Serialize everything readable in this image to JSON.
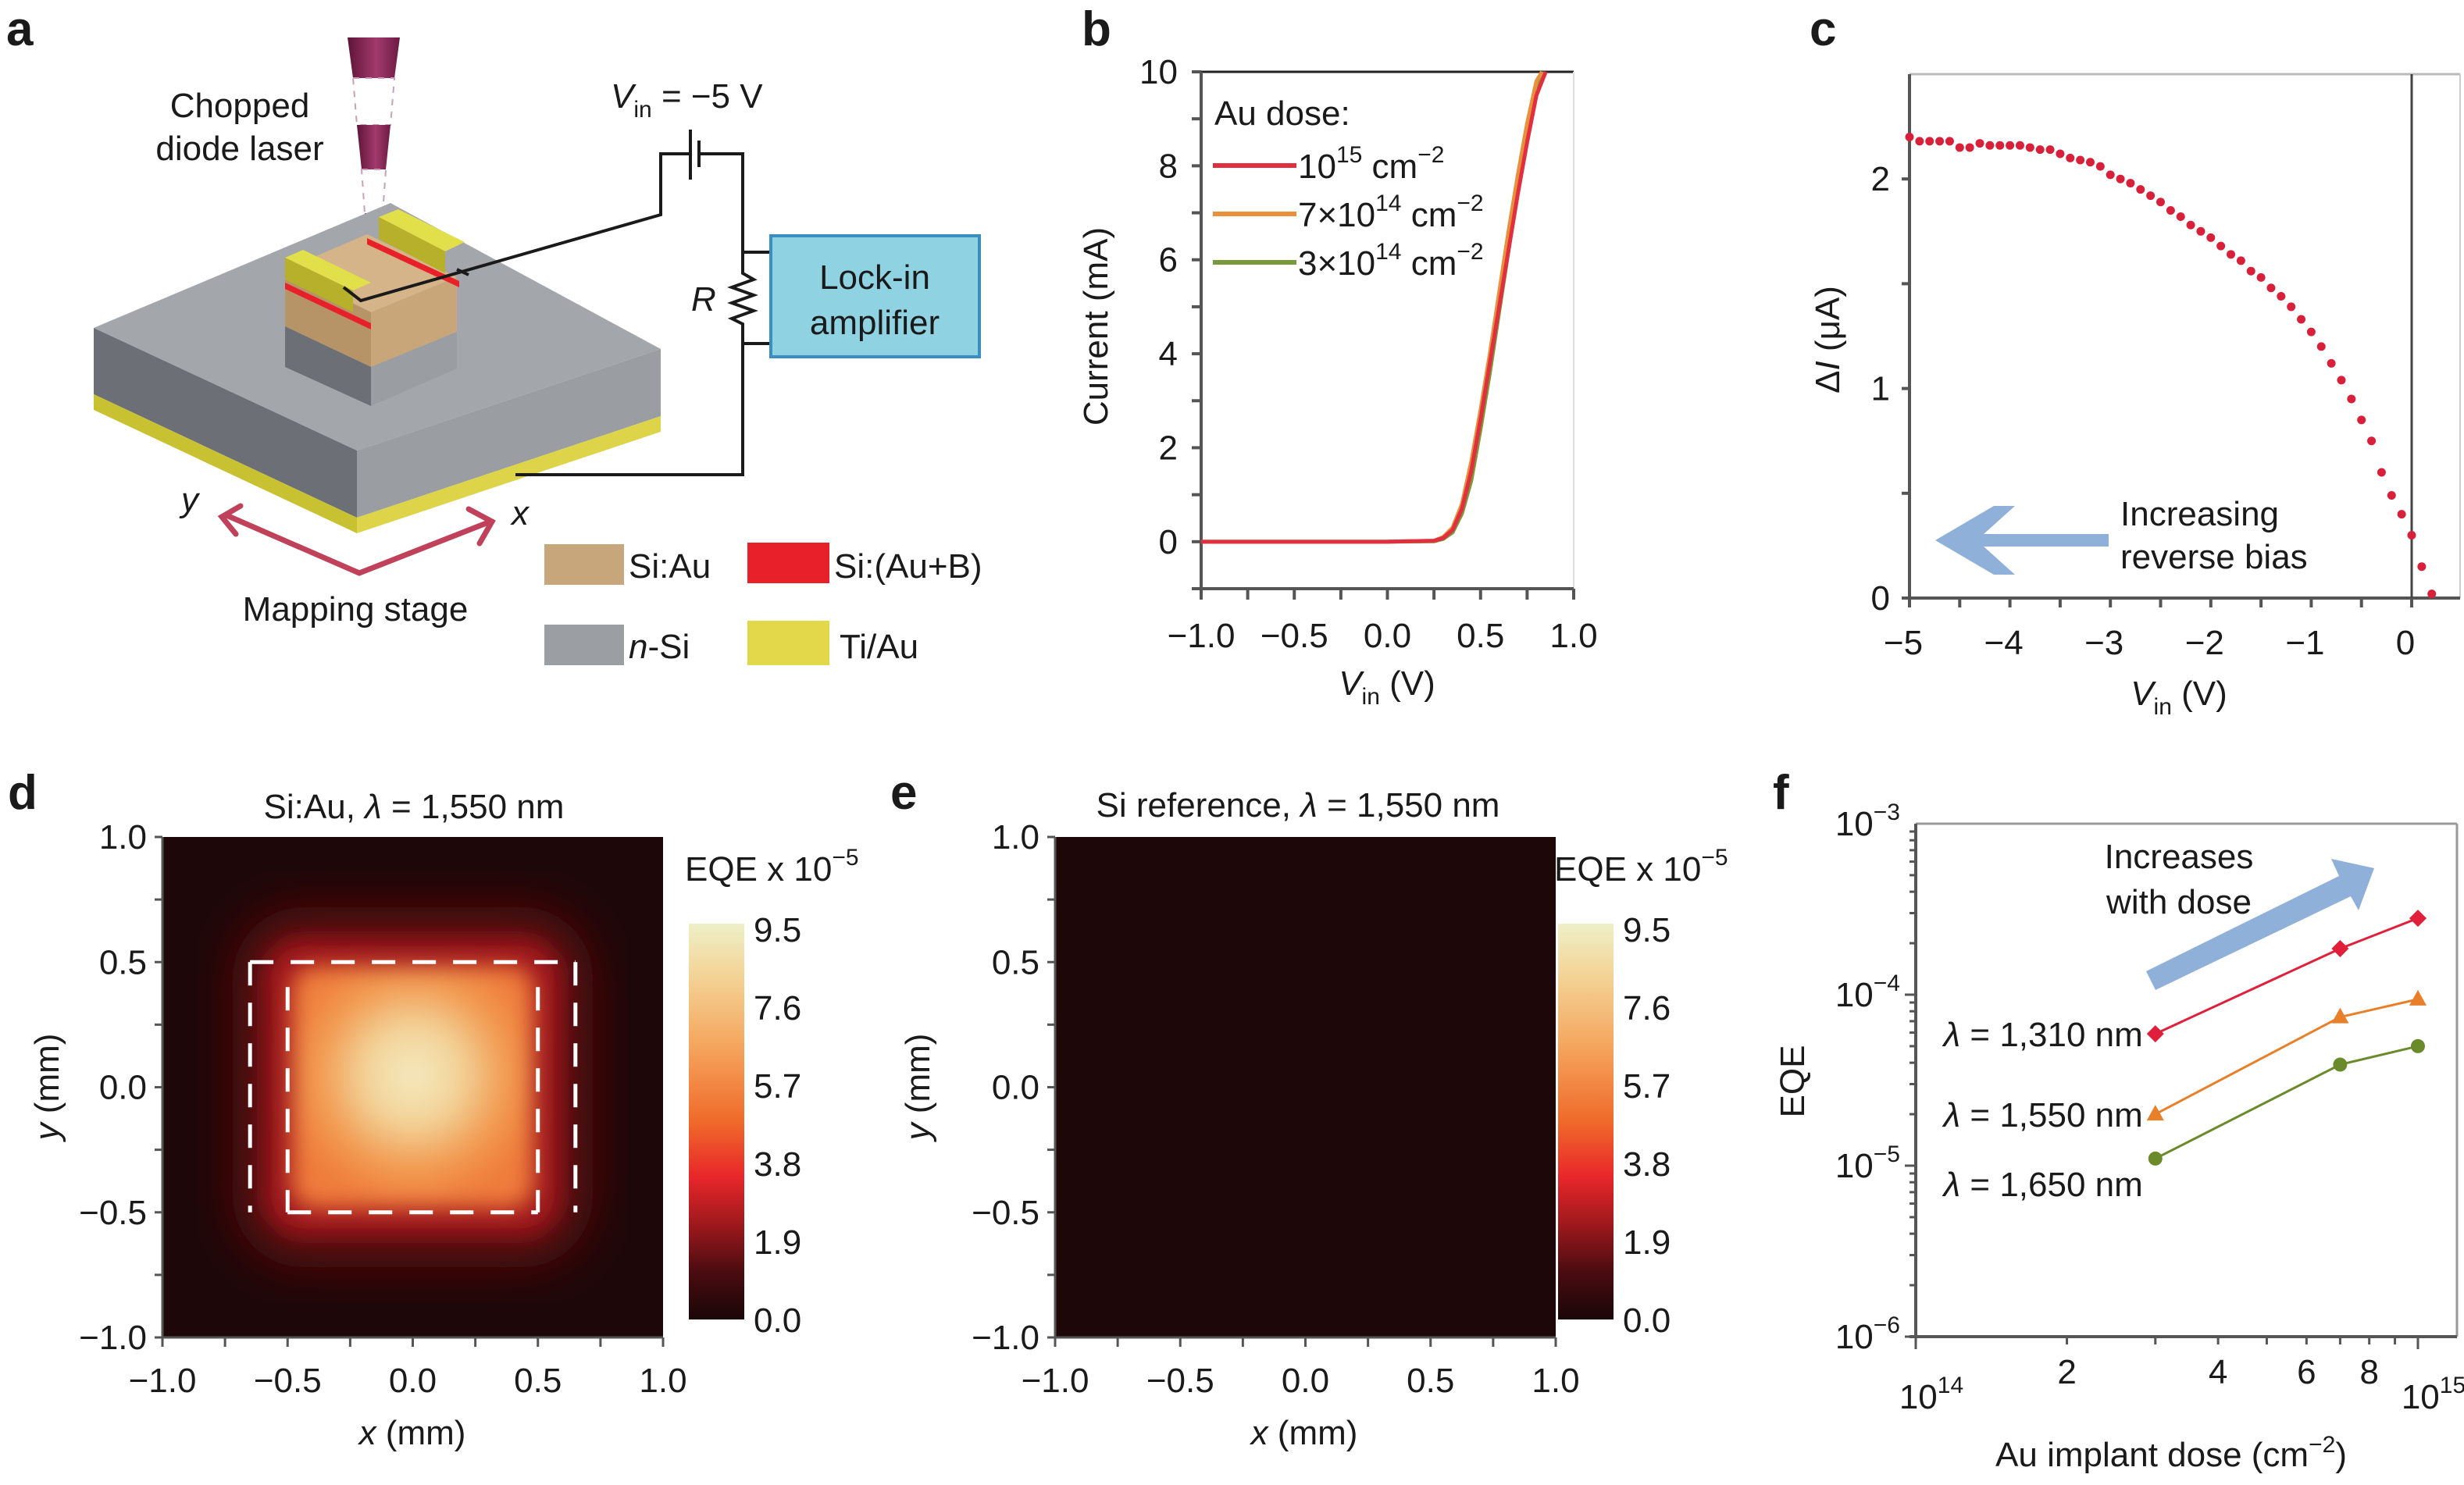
{
  "figure": {
    "panel_labels": [
      "a",
      "b",
      "c",
      "d",
      "e",
      "f"
    ]
  },
  "panel_a": {
    "laser_label_line1": "Chopped",
    "laser_label_line2": "diode laser",
    "voltage_label_main": "V",
    "voltage_label_sub": "in",
    "voltage_label_value": " = −5 V",
    "resistor_label": "R",
    "amplifier_line1": "Lock-in",
    "amplifier_line2": "amplifier",
    "axis_y": "y",
    "axis_x": "x",
    "stage_label": "Mapping stage",
    "legend": [
      {
        "label": "Si:Au",
        "color": "#c8a67c"
      },
      {
        "label": "Si:(Au+B)",
        "color": "#e8202a"
      },
      {
        "label": "-Si",
        "italic_prefix": "n",
        "color": "#9b9ea2"
      },
      {
        "label": "Ti/Au",
        "color": "#e2d84a"
      }
    ],
    "colors": {
      "laser": "#8a2356",
      "amplifier_fill": "#8fd3e3",
      "amplifier_border": "#3a8fc0",
      "stage_arrow": "#c0415a"
    }
  },
  "chart_data": [
    {
      "id": "b",
      "type": "line",
      "title": "",
      "xlabel": "V_in (V)",
      "xlabel_main": "V",
      "xlabel_sub": "in",
      "xlabel_unit": " (V)",
      "ylabel": "Current (mA)",
      "xlim": [
        -1.0,
        1.0
      ],
      "ylim": [
        -1,
        10
      ],
      "xticks": [
        -1.0,
        -0.5,
        0.0,
        0.5,
        1.0
      ],
      "xtick_labels": [
        "−1.0",
        "−0.5",
        "0.0",
        "0.5",
        "1.0"
      ],
      "yticks": [
        0,
        2,
        4,
        6,
        8,
        10
      ],
      "ytick_labels": [
        "0",
        "2",
        "4",
        "6",
        "8",
        "10"
      ],
      "legend_title": "Au dose:",
      "legend_position": "top-left",
      "series": [
        {
          "name": "10^15 cm^-2",
          "base": "10",
          "exp": "15",
          "unit": " cm",
          "unit_exp": "−2",
          "color": "#e03040",
          "x": [
            -1.0,
            0.0,
            0.25,
            0.3,
            0.35,
            0.4,
            0.45,
            0.5,
            0.55,
            0.6,
            0.65,
            0.7,
            0.75,
            0.8,
            0.85
          ],
          "y": [
            0,
            0,
            0.02,
            0.08,
            0.25,
            0.7,
            1.5,
            2.6,
            3.8,
            5.0,
            6.2,
            7.4,
            8.5,
            9.5,
            10
          ]
        },
        {
          "name": "7×10^14 cm^-2",
          "base": "7×10",
          "exp": "14",
          "unit": " cm",
          "unit_exp": "−2",
          "color": "#e8903a",
          "x": [
            -1.0,
            0.0,
            0.25,
            0.3,
            0.35,
            0.4,
            0.45,
            0.5,
            0.55,
            0.6,
            0.65,
            0.7,
            0.75,
            0.8,
            0.83
          ],
          "y": [
            0,
            0,
            0.02,
            0.1,
            0.3,
            0.8,
            1.7,
            2.8,
            4.0,
            5.3,
            6.6,
            7.8,
            8.9,
            9.8,
            10
          ]
        },
        {
          "name": "3×10^14 cm^-2",
          "base": "3×10",
          "exp": "14",
          "unit": " cm",
          "unit_exp": "−2",
          "color": "#7a9a3a",
          "x": [
            -1.0,
            0.0,
            0.25,
            0.3,
            0.35,
            0.4,
            0.45,
            0.5,
            0.55,
            0.6,
            0.65,
            0.7,
            0.75,
            0.8,
            0.84
          ],
          "y": [
            0,
            0,
            0.01,
            0.06,
            0.2,
            0.6,
            1.3,
            2.4,
            3.6,
            4.9,
            6.2,
            7.5,
            8.6,
            9.6,
            10
          ]
        }
      ]
    },
    {
      "id": "c",
      "type": "scatter",
      "title": "",
      "xlabel": "V_in (V)",
      "xlabel_main": "V",
      "xlabel_sub": "in",
      "xlabel_unit": " (V)",
      "ylabel": "ΔI (μA)",
      "ylabel_main": "Δ",
      "ylabel_italic": "I",
      "ylabel_unit": " (μA)",
      "xlim": [
        -5,
        0.5
      ],
      "ylim": [
        0,
        2.5
      ],
      "xticks": [
        -5,
        -4,
        -3,
        -2,
        -1,
        0
      ],
      "xtick_labels": [
        "−5",
        "−4",
        "−3",
        "−2",
        "−1",
        "0"
      ],
      "yticks": [
        0,
        1,
        2
      ],
      "ytick_labels": [
        "0",
        "1",
        "2"
      ],
      "annotation_line1": "Increasing",
      "annotation_line2": "reverse bias",
      "marker_color": "#d8203a",
      "arrow_color": "#8fb0d8",
      "x": [
        -5.0,
        -4.9,
        -4.8,
        -4.7,
        -4.6,
        -4.5,
        -4.4,
        -4.3,
        -4.2,
        -4.1,
        -4.0,
        -3.9,
        -3.8,
        -3.7,
        -3.6,
        -3.5,
        -3.4,
        -3.3,
        -3.2,
        -3.1,
        -3.0,
        -2.9,
        -2.8,
        -2.7,
        -2.6,
        -2.5,
        -2.4,
        -2.3,
        -2.2,
        -2.1,
        -2.0,
        -1.9,
        -1.8,
        -1.7,
        -1.6,
        -1.5,
        -1.4,
        -1.3,
        -1.2,
        -1.1,
        -1.0,
        -0.9,
        -0.8,
        -0.7,
        -0.6,
        -0.5,
        -0.4,
        -0.3,
        -0.2,
        -0.1,
        0.0,
        0.1,
        0.2
      ],
      "y": [
        2.2,
        2.18,
        2.18,
        2.18,
        2.18,
        2.15,
        2.15,
        2.17,
        2.16,
        2.16,
        2.16,
        2.16,
        2.15,
        2.14,
        2.14,
        2.12,
        2.1,
        2.09,
        2.08,
        2.06,
        2.02,
        2.0,
        1.98,
        1.95,
        1.92,
        1.89,
        1.85,
        1.82,
        1.78,
        1.75,
        1.72,
        1.68,
        1.64,
        1.61,
        1.56,
        1.53,
        1.48,
        1.44,
        1.39,
        1.33,
        1.27,
        1.2,
        1.12,
        1.04,
        0.95,
        0.85,
        0.75,
        0.6,
        0.49,
        0.4,
        0.3,
        0.15,
        0.02
      ]
    },
    {
      "id": "d",
      "type": "heatmap",
      "title_prefix": "Si:Au, ",
      "title_lambda": "λ",
      "title_suffix": " = 1,550 nm",
      "xlabel": "x (mm)",
      "ylabel": "y (mm)",
      "xlim": [
        -1.0,
        1.0
      ],
      "ylim": [
        -1.0,
        1.0
      ],
      "xticks": [
        -1.0,
        -0.5,
        0.0,
        0.5,
        1.0
      ],
      "xtick_labels": [
        "−1.0",
        "−0.5",
        "0.0",
        "0.5",
        "1.0"
      ],
      "yticks": [
        -1.0,
        -0.5,
        0.0,
        0.5,
        1.0
      ],
      "ytick_labels": [
        "−1.0",
        "−0.5",
        "0.0",
        "0.5",
        "1.0"
      ],
      "colorbar_label_main": "EQE x 10",
      "colorbar_label_exp": "−5",
      "colorbar_ticks": [
        0.0,
        1.9,
        3.8,
        5.7,
        7.6,
        9.5
      ],
      "colorbar_tick_labels": [
        "0.0",
        "1.9",
        "3.8",
        "5.7",
        "7.6",
        "9.5"
      ],
      "clim": [
        0.0,
        9.5
      ],
      "active_region": {
        "x": [
          -0.5,
          0.5
        ],
        "y": [
          -0.5,
          0.5
        ],
        "peak": 9.3,
        "edge": 4.5
      },
      "dashed_outline": {
        "x": [
          -0.65,
          0.65
        ],
        "y": [
          -0.5,
          0.5
        ]
      },
      "background": 0.1
    },
    {
      "id": "e",
      "type": "heatmap",
      "title_prefix": "Si reference, ",
      "title_lambda": "λ",
      "title_suffix": " = 1,550 nm",
      "xlabel": "x (mm)",
      "ylabel": "y (mm)",
      "xlim": [
        -1.0,
        1.0
      ],
      "ylim": [
        -1.0,
        1.0
      ],
      "xticks": [
        -1.0,
        -0.5,
        0.0,
        0.5,
        1.0
      ],
      "xtick_labels": [
        "−1.0",
        "−0.5",
        "0.0",
        "0.5",
        "1.0"
      ],
      "yticks": [
        -1.0,
        -0.5,
        0.0,
        0.5,
        1.0
      ],
      "ytick_labels": [
        "−1.0",
        "−0.5",
        "0.0",
        "0.5",
        "1.0"
      ],
      "colorbar_label_main": "EQE x 10",
      "colorbar_label_exp": "−5",
      "colorbar_ticks": [
        0.0,
        1.9,
        3.8,
        5.7,
        7.6,
        9.5
      ],
      "colorbar_tick_labels": [
        "0.0",
        "1.9",
        "3.8",
        "5.7",
        "7.6",
        "9.5"
      ],
      "clim": [
        0.0,
        9.5
      ],
      "background": 0.1
    },
    {
      "id": "f",
      "type": "line",
      "xscale": "log",
      "yscale": "log",
      "xlabel": "Au implant dose (cm^-2)",
      "xlabel_main": "Au implant dose (cm",
      "xlabel_exp": "−2",
      "xlabel_end": ")",
      "ylabel": "EQE",
      "xlim": [
        100000000000000.0,
        1080000000000000.0
      ],
      "ylim": [
        1e-06,
        0.001
      ],
      "xtick_labels_major": [
        {
          "base": "10",
          "exp": "14",
          "value": 100000000000000.0
        },
        {
          "base": "10",
          "exp": "15",
          "value": 1000000000000000.0
        }
      ],
      "xtick_labels_minor": [
        {
          "label": "2",
          "value": 200000000000000.0
        },
        {
          "label": "4",
          "value": 400000000000000.0
        },
        {
          "label": "6",
          "value": 600000000000000.0
        },
        {
          "label": "8",
          "value": 800000000000000.0
        }
      ],
      "ytick_labels": [
        {
          "base": "10",
          "exp": "−3",
          "value": 0.001
        },
        {
          "base": "10",
          "exp": "−4",
          "value": 0.0001
        },
        {
          "base": "10",
          "exp": "−5",
          "value": 1e-05
        },
        {
          "base": "10",
          "exp": "−6",
          "value": 1e-06
        }
      ],
      "annotation_line1": "Increases",
      "annotation_line2": "with dose",
      "arrow_color": "#8fb0d8",
      "x": [
        300000000000000.0,
        700000000000000.0,
        1000000000000000.0
      ],
      "series": [
        {
          "name": "λ = 1,310 nm",
          "lambda": "λ",
          "text": " = 1,310 nm",
          "marker": "diamond",
          "color": "#e0203a",
          "y": [
            5.9e-05,
            0.000186,
            0.00028
          ]
        },
        {
          "name": "λ = 1,550 nm",
          "lambda": "λ",
          "text": " = 1,550 nm",
          "marker": "triangle",
          "color": "#e8802a",
          "y": [
            2e-05,
            7.4e-05,
            9.4e-05
          ]
        },
        {
          "name": "λ = 1,650 nm",
          "lambda": "λ",
          "text": " = 1,650 nm",
          "marker": "circle",
          "color": "#6b8a2a",
          "y": [
            1.1e-05,
            3.9e-05,
            5e-05
          ]
        }
      ]
    }
  ]
}
